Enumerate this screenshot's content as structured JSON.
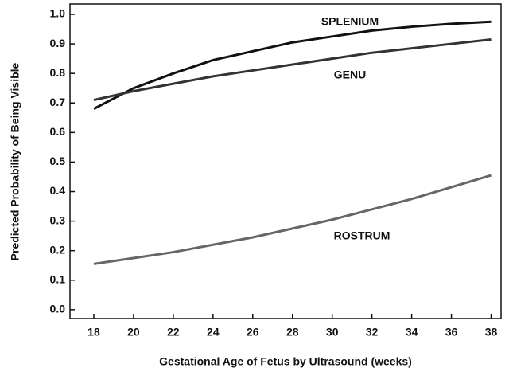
{
  "chart_data": {
    "type": "line",
    "x_label": "Gestational Age of Fetus by Ultrasound (weeks)",
    "y_label": "Predicted Probability of Being Visible",
    "x": [
      18,
      20,
      22,
      24,
      26,
      28,
      30,
      32,
      34,
      36,
      38
    ],
    "series": [
      {
        "name": "SPLENIUM",
        "color": "#111111",
        "values": [
          0.68,
          0.75,
          0.8,
          0.845,
          0.875,
          0.905,
          0.925,
          0.945,
          0.958,
          0.968,
          0.975
        ]
      },
      {
        "name": "GENU",
        "color": "#333333",
        "values": [
          0.71,
          0.74,
          0.765,
          0.79,
          0.81,
          0.83,
          0.85,
          0.87,
          0.885,
          0.9,
          0.915
        ]
      },
      {
        "name": "ROSTRUM",
        "color": "#666666",
        "values": [
          0.155,
          0.175,
          0.195,
          0.22,
          0.245,
          0.275,
          0.305,
          0.34,
          0.375,
          0.415,
          0.455
        ]
      }
    ],
    "xlim": [
      16.8,
      38.5
    ],
    "xticks": [
      18,
      20,
      22,
      24,
      26,
      28,
      30,
      32,
      34,
      36,
      38
    ],
    "ylim": [
      -0.03,
      1.035
    ],
    "yticks": [
      {
        "value": 0,
        "label": "0.0"
      },
      0.1,
      0.2,
      0.3,
      0.4,
      0.5,
      0.6,
      0.7,
      0.8,
      0.9,
      {
        "value": 1,
        "label": "1.0"
      }
    ],
    "grid": false
  }
}
